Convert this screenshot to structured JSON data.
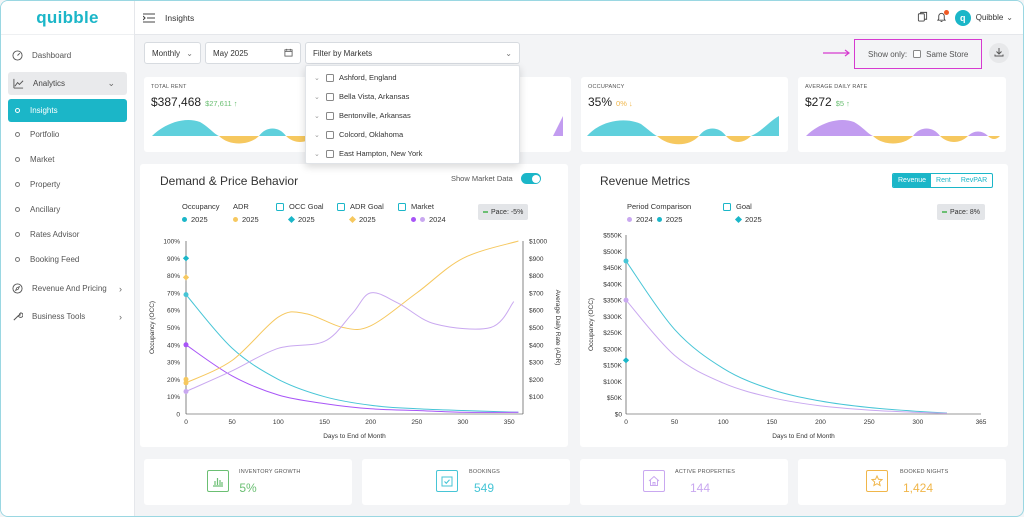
{
  "brand": {
    "logo_text": "quibble",
    "accent": "#1bb6c8"
  },
  "topbar": {
    "title": "Insights",
    "user_name": "Quibble",
    "avatar_letter": "q"
  },
  "sidebar": {
    "dashboard": "Dashboard",
    "analytics": "Analytics",
    "analytics_items": [
      "Insights",
      "Portfolio",
      "Market",
      "Property",
      "Ancillary",
      "Rates Advisor",
      "Booking Feed"
    ],
    "revenue_pricing": "Revenue And Pricing",
    "business_tools": "Business Tools"
  },
  "filters": {
    "period": "Monthly",
    "month": "May 2025",
    "markets_placeholder": "Filter by Markets",
    "markets": [
      "Ashford, England",
      "Bella Vista, Arkansas",
      "Bentonville, Arkansas",
      "Colcord, Oklahoma",
      "East Hampton, New York"
    ],
    "show_only_label": "Show only:",
    "same_store_label": "Same Store"
  },
  "kpis": [
    {
      "label": "TOTAL RENT",
      "value": "$387,468",
      "change": "$27,611 ↑",
      "change_color": "#6bbf73"
    },
    {
      "label": "",
      "value": "",
      "change": ""
    },
    {
      "label": "OCCUPANCY",
      "value": "35%",
      "change": "0% ↓",
      "change_color": "#f0b64a"
    },
    {
      "label": "AVERAGE DAILY RATE",
      "value": "$272",
      "change": "$5 ↑",
      "change_color": "#6bbf73"
    }
  ],
  "demand_panel": {
    "title": "Demand & Price Behavior",
    "show_market_label": "Show Market Data",
    "legend": [
      {
        "name": "Occupancy",
        "items": [
          "2025"
        ]
      },
      {
        "name": "ADR",
        "items": [
          "2025"
        ]
      },
      {
        "name": "OCC Goal",
        "items": [
          "2025"
        ]
      },
      {
        "name": "ADR Goal",
        "items": [
          "2025"
        ]
      },
      {
        "name": "Market",
        "items": [
          "2024"
        ]
      }
    ],
    "pace": "Pace: -5%"
  },
  "revenue_panel": {
    "title": "Revenue Metrics",
    "tabs": [
      "Revenue",
      "Rent",
      "RevPAR"
    ],
    "active_tab": "Revenue",
    "legend_period": "Period Comparison",
    "legend_period_items": [
      "2024",
      "2025"
    ],
    "legend_goal": "Goal",
    "legend_goal_items": [
      "2025"
    ],
    "pace": "Pace: 8%"
  },
  "chart_data": [
    {
      "type": "line",
      "title": "Demand & Price Behavior",
      "xlabel": "Days to End of Month",
      "ylabel": "Occupancy (OCC)",
      "y2label": "Average Daily Rate (ADR)",
      "x_ticks": [
        0,
        50,
        100,
        150,
        200,
        250,
        300,
        350
      ],
      "y_ticks": [
        "0",
        "10%",
        "20%",
        "30%",
        "40%",
        "50%",
        "60%",
        "70%",
        "80%",
        "90%",
        "100%"
      ],
      "y2_ticks": [
        "$100",
        "$200",
        "$300",
        "$400",
        "$500",
        "$600",
        "$700",
        "$800",
        "$900",
        "$1000"
      ],
      "xlim": [
        0,
        365
      ],
      "ylim": [
        0,
        100
      ],
      "y2lim": [
        0,
        1000
      ],
      "series": [
        {
          "name": "Occupancy 2025",
          "color": "#47c5d6",
          "axis": "left",
          "x": [
            0,
            50,
            100,
            150,
            200,
            250,
            300,
            360
          ],
          "values": [
            69,
            38,
            20,
            10,
            5,
            3,
            2,
            1
          ]
        },
        {
          "name": "Market 2024",
          "color": "#a855f7",
          "axis": "left",
          "x": [
            0,
            50,
            100,
            150,
            200,
            250,
            300,
            360
          ],
          "values": [
            40,
            22,
            11,
            6,
            3,
            2,
            1,
            1
          ]
        },
        {
          "name": "ADR 2025",
          "color": "#f6c85f",
          "axis": "right",
          "x": [
            0,
            50,
            100,
            130,
            170,
            200,
            250,
            300,
            360
          ],
          "values": [
            180,
            310,
            560,
            580,
            500,
            510,
            700,
            900,
            1000
          ]
        },
        {
          "name": "Market ADR",
          "color": "#c9a8f0",
          "axis": "right",
          "x": [
            0,
            50,
            100,
            150,
            180,
            200,
            230,
            270,
            330,
            355
          ],
          "values": [
            130,
            250,
            380,
            420,
            580,
            700,
            640,
            520,
            500,
            650
          ]
        }
      ],
      "markers": [
        {
          "name": "OCC Goal 2025",
          "color": "#1bb6c8",
          "shape": "diamond",
          "x": 0,
          "value": 90,
          "axis": "left"
        },
        {
          "name": "ADR Goal 2025",
          "color": "#f6c85f",
          "shape": "diamond",
          "x": 0,
          "value": 790,
          "axis": "right"
        },
        {
          "name": "ADR 2025 start",
          "color": "#f6c85f",
          "shape": "circle",
          "x": 0,
          "value": 200,
          "axis": "right"
        }
      ]
    },
    {
      "type": "line",
      "title": "Revenue Metrics",
      "xlabel": "Days to End of Month",
      "ylabel": "Occupancy (OCC)",
      "x_ticks": [
        0,
        50,
        100,
        150,
        200,
        250,
        300,
        365
      ],
      "y_ticks": [
        "$0",
        "$50K",
        "$100K",
        "$150K",
        "$200K",
        "$250K",
        "$300K",
        "$350K",
        "$400K",
        "$450K",
        "$500K",
        "$550K"
      ],
      "xlim": [
        0,
        365
      ],
      "ylim": [
        0,
        550000
      ],
      "series": [
        {
          "name": "2025",
          "color": "#47c5d6",
          "x": [
            0,
            50,
            100,
            150,
            200,
            250,
            300,
            330
          ],
          "values": [
            470000,
            260000,
            140000,
            75000,
            40000,
            20000,
            8000,
            3000
          ]
        },
        {
          "name": "2024",
          "color": "#c9a8f0",
          "x": [
            0,
            50,
            100,
            150,
            200,
            250,
            300,
            330
          ],
          "values": [
            350000,
            180000,
            95000,
            50000,
            25000,
            12000,
            5000,
            2000
          ]
        }
      ],
      "markers": [
        {
          "name": "Goal 2025",
          "color": "#1bb6c8",
          "shape": "diamond",
          "x": 0,
          "value": 165000
        }
      ]
    }
  ],
  "bottom_cards": [
    {
      "label": "INVENTORY GROWTH",
      "value": "5%",
      "color": "#6bbf73",
      "icon": "bar-chart-icon"
    },
    {
      "label": "BOOKINGS",
      "value": "549",
      "color": "#47c5d6",
      "icon": "calendar-check-icon"
    },
    {
      "label": "ACTIVE PROPERTIES",
      "value": "144",
      "color": "#c9a8f0",
      "icon": "home-icon"
    },
    {
      "label": "BOOKED NIGHTS",
      "value": "1,424",
      "color": "#f0b64a",
      "icon": "star-icon"
    }
  ]
}
